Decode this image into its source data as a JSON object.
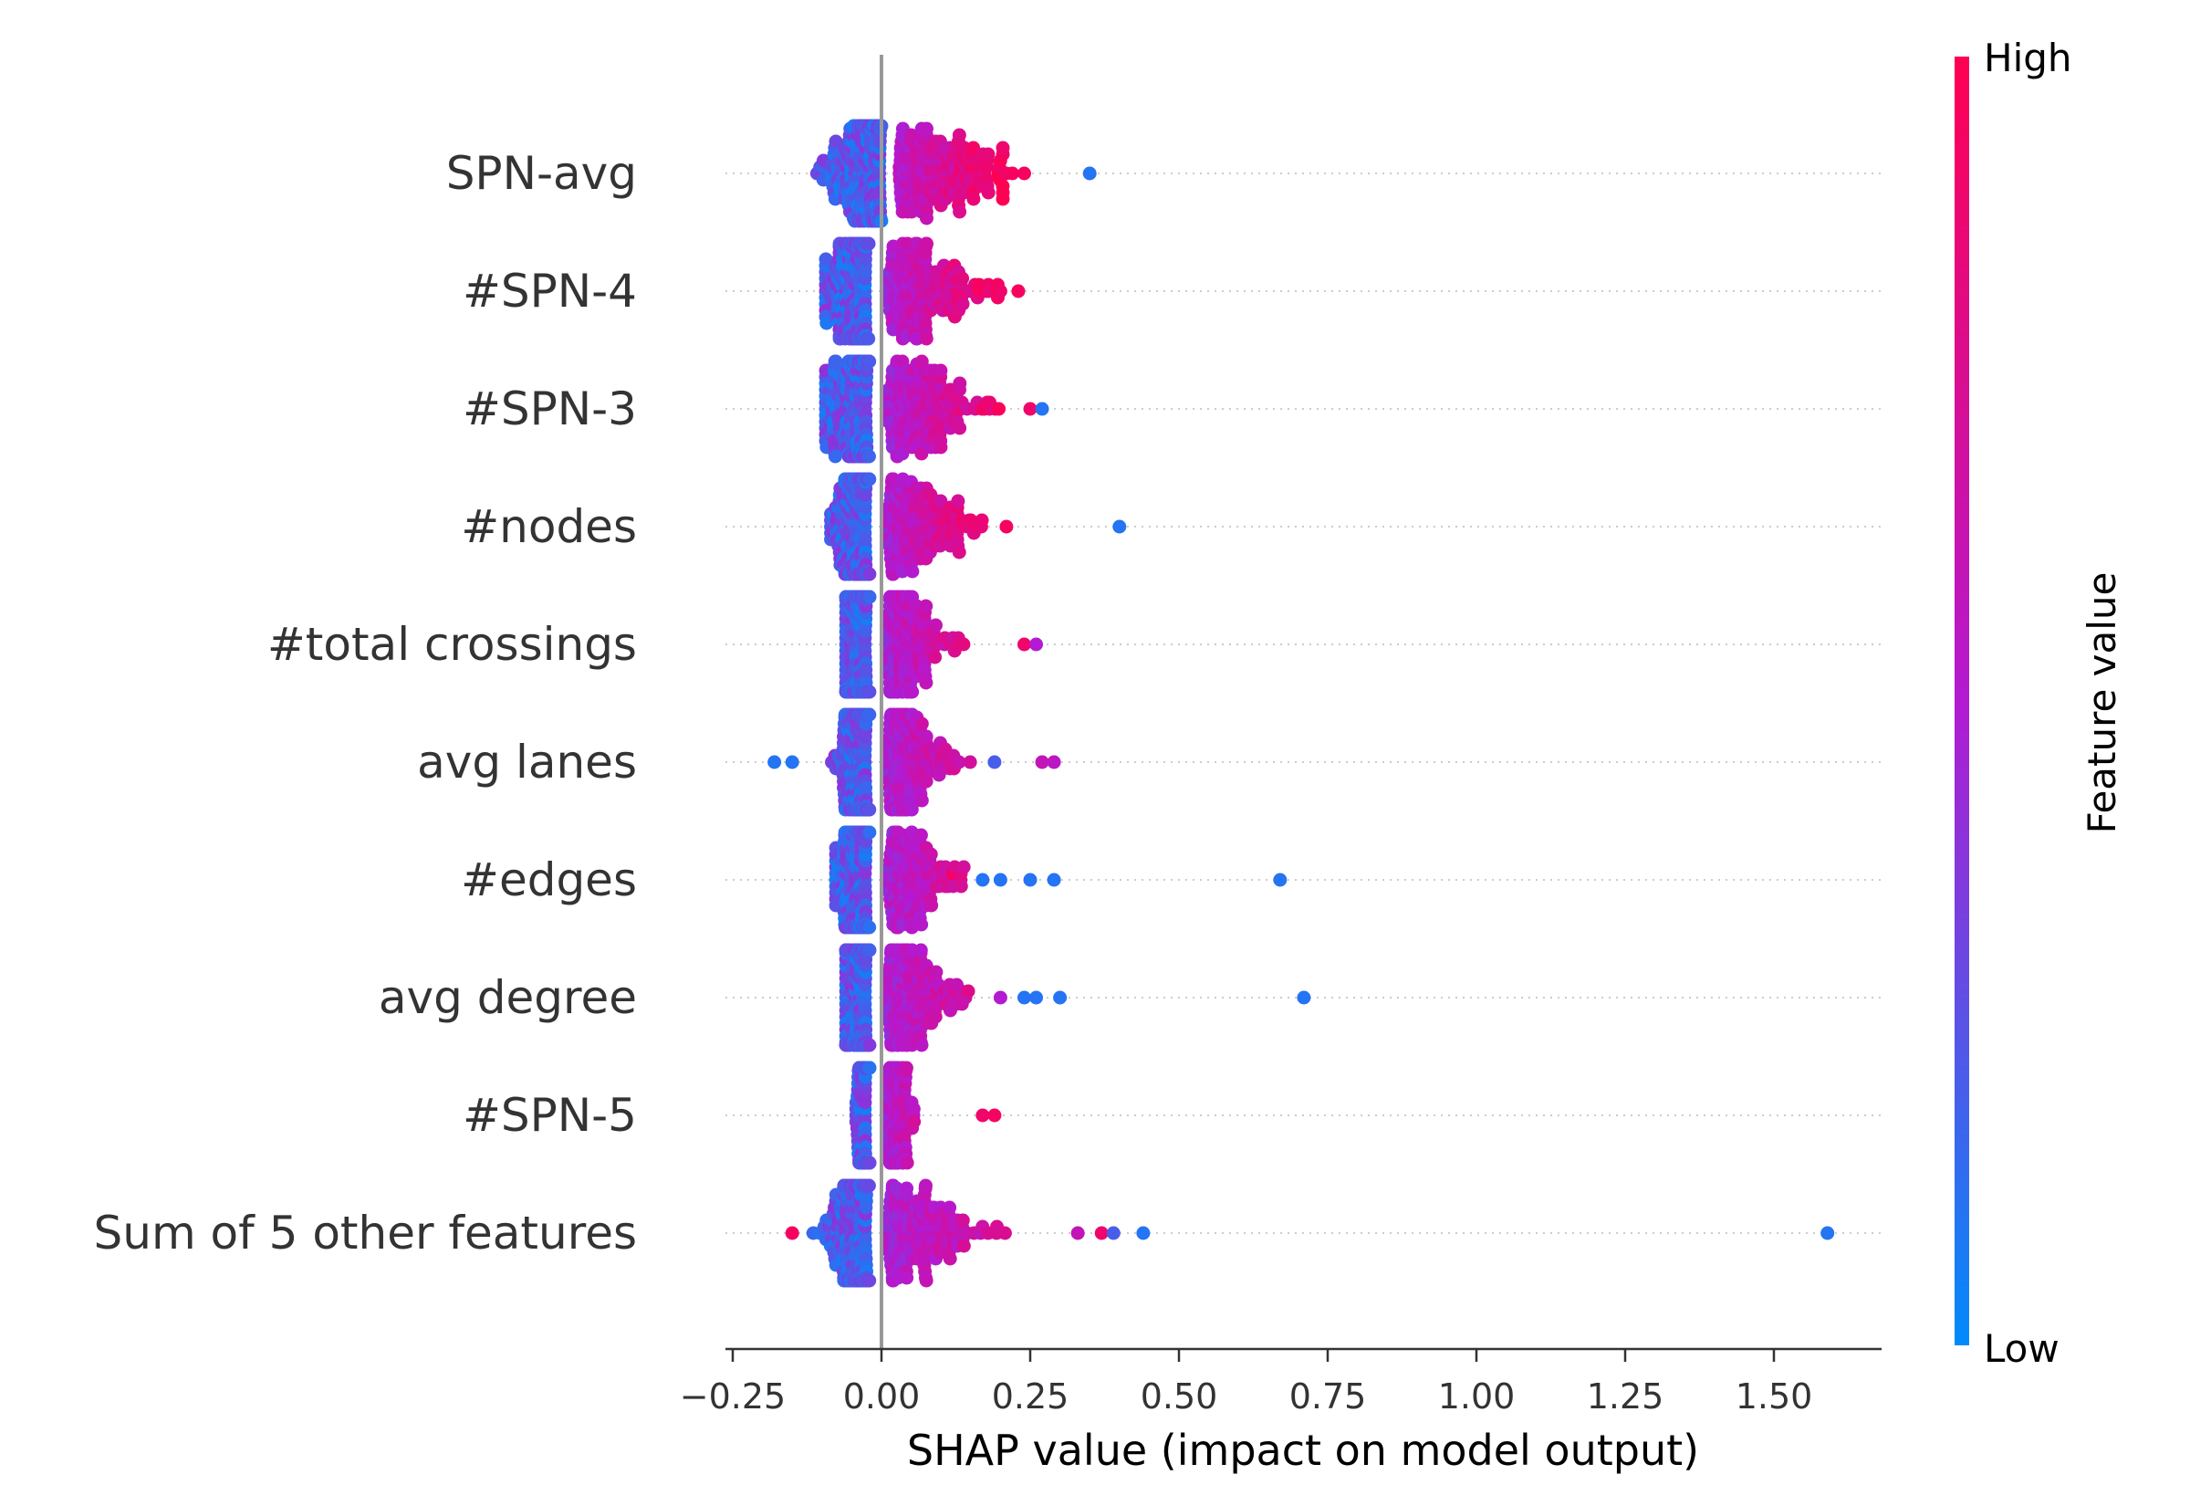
{
  "chart_data": {
    "type": "scatter",
    "subtype": "shap-beeswarm",
    "title": "",
    "xlabel": "SHAP value (impact on model output)",
    "ylabel": "",
    "xlim": [
      -0.27,
      1.68
    ],
    "xticks": [
      -0.25,
      0.0,
      0.25,
      0.5,
      0.75,
      1.0,
      1.25,
      1.5
    ],
    "xtick_labels": [
      "−0.25",
      "0.00",
      "0.25",
      "0.50",
      "0.75",
      "1.00",
      "1.25",
      "1.50"
    ],
    "zero_line": 0.0,
    "row_gridlines": "dotted",
    "colorbar": {
      "title": "Feature value",
      "high_label": "High",
      "low_label": "Low",
      "high_color": "#ff0052",
      "mid_color": "#b31ad1",
      "low_color": "#008bfb",
      "placement": "right"
    },
    "features": [
      {
        "name": "SPN-avg",
        "range": [
          -0.15,
          0.24
        ],
        "spread": 0.09,
        "center": 0.02,
        "outliers": [
          {
            "x": 0.35,
            "c": 0.1
          },
          {
            "x": 0.22,
            "c": 0.95
          },
          {
            "x": 0.24,
            "c": 0.95
          },
          {
            "x": 0.21,
            "c": 0.9
          }
        ]
      },
      {
        "name": "#SPN-4",
        "range": [
          -0.11,
          0.23
        ],
        "spread": 0.09,
        "center": 0.0,
        "outliers": [
          {
            "x": 0.23,
            "c": 0.95
          },
          {
            "x": 0.2,
            "c": 0.9
          }
        ]
      },
      {
        "name": "#SPN-3",
        "range": [
          -0.11,
          0.27
        ],
        "spread": 0.08,
        "center": 0.0,
        "outliers": [
          {
            "x": 0.27,
            "c": 0.1
          },
          {
            "x": 0.25,
            "c": 0.9
          }
        ]
      },
      {
        "name": "#nodes",
        "range": [
          -0.1,
          0.21
        ],
        "spread": 0.07,
        "center": 0.0,
        "outliers": [
          {
            "x": 0.4,
            "c": 0.1
          },
          {
            "x": 0.21,
            "c": 0.95
          }
        ]
      },
      {
        "name": "#total crossings",
        "range": [
          -0.07,
          0.26
        ],
        "spread": 0.05,
        "center": 0.0,
        "outliers": [
          {
            "x": 0.26,
            "c": 0.5
          },
          {
            "x": 0.24,
            "c": 0.9
          }
        ]
      },
      {
        "name": "avg lanes",
        "range": [
          -0.18,
          0.29
        ],
        "spread": 0.05,
        "center": 0.0,
        "outliers": [
          {
            "x": -0.18,
            "c": 0.1
          },
          {
            "x": -0.15,
            "c": 0.1
          },
          {
            "x": 0.27,
            "c": 0.6
          },
          {
            "x": 0.29,
            "c": 0.55
          },
          {
            "x": 0.19,
            "c": 0.2
          }
        ]
      },
      {
        "name": "#edges",
        "range": [
          -0.09,
          0.29
        ],
        "spread": 0.06,
        "center": 0.0,
        "outliers": [
          {
            "x": 0.67,
            "c": 0.1
          },
          {
            "x": 0.29,
            "c": 0.1
          },
          {
            "x": 0.25,
            "c": 0.1
          },
          {
            "x": 0.2,
            "c": 0.1
          },
          {
            "x": 0.17,
            "c": 0.1
          },
          {
            "x": 0.12,
            "c": 0.95
          }
        ]
      },
      {
        "name": "avg degree",
        "range": [
          -0.07,
          0.3
        ],
        "spread": 0.05,
        "center": 0.0,
        "outliers": [
          {
            "x": 0.71,
            "c": 0.1
          },
          {
            "x": 0.3,
            "c": 0.1
          },
          {
            "x": 0.26,
            "c": 0.1
          },
          {
            "x": 0.24,
            "c": 0.1
          },
          {
            "x": 0.2,
            "c": 0.5
          }
        ]
      },
      {
        "name": "#SPN-5",
        "range": [
          -0.05,
          0.19
        ],
        "spread": 0.02,
        "center": 0.0,
        "outliers": [
          {
            "x": 0.19,
            "c": 0.95
          },
          {
            "x": 0.17,
            "c": 0.9
          }
        ]
      },
      {
        "name": "Sum of 5 other features",
        "range": [
          -0.15,
          0.44
        ],
        "spread": 0.07,
        "center": 0.0,
        "outliers": [
          {
            "x": 1.59,
            "c": 0.1
          },
          {
            "x": 0.44,
            "c": 0.1
          },
          {
            "x": 0.39,
            "c": 0.2
          },
          {
            "x": 0.37,
            "c": 0.9
          },
          {
            "x": -0.15,
            "c": 0.95
          },
          {
            "x": 0.33,
            "c": 0.6
          }
        ]
      }
    ]
  }
}
